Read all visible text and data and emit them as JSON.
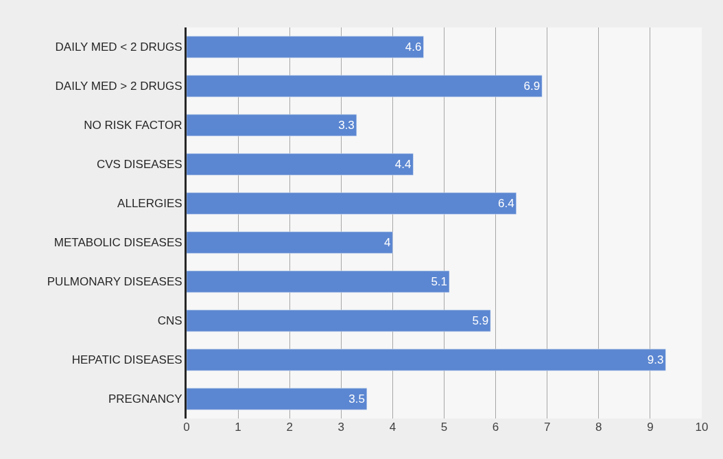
{
  "chart_data": {
    "type": "bar",
    "orientation": "horizontal",
    "categories": [
      "DAILY MED < 2 DRUGS",
      "DAILY MED > 2 DRUGS",
      "NO RISK FACTOR",
      "CVS DISEASES",
      "ALLERGIES",
      "METABOLIC DISEASES",
      "PULMONARY DISEASES",
      "CNS",
      "HEPATIC DISEASES",
      "PREGNANCY"
    ],
    "values": [
      4.6,
      6.9,
      3.3,
      4.4,
      6.4,
      4,
      5.1,
      5.9,
      9.3,
      3.5
    ],
    "color": "#5b86d1",
    "xlim": [
      0,
      10
    ],
    "xticks": [
      0,
      1,
      2,
      3,
      4,
      5,
      6,
      7,
      8,
      9,
      10
    ],
    "grid": "x",
    "legend": false,
    "data_labels": true
  }
}
